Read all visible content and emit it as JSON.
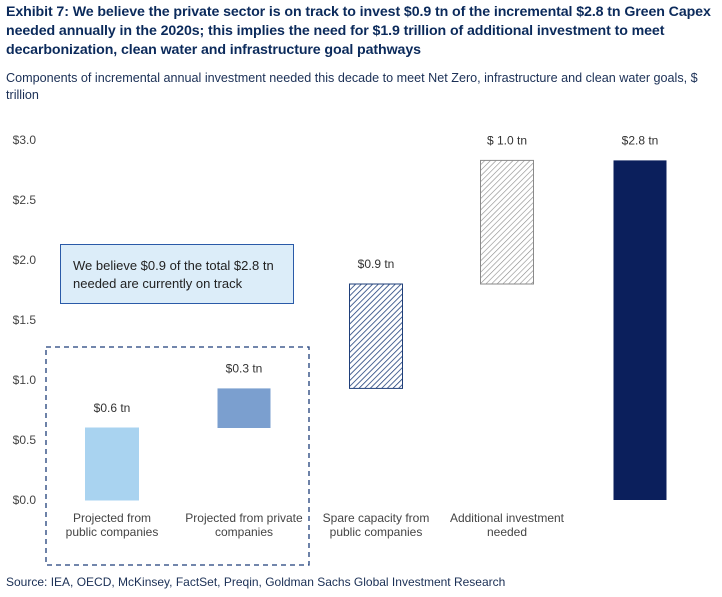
{
  "title": "Exhibit 7: We believe the private sector is on track to invest $0.9 tn of the incremental $2.8 tn Green Capex needed annually in the 2020s; this implies the need for $1.9 trillion of additional investment to meet decarbonization, clean water and infrastructure goal pathways",
  "subtitle": "Components of incremental annual investment needed this decade to meet Net Zero, infrastructure and clean water goals, $ trillion",
  "source": "Source: IEA, OECD, McKinsey, FactSet, Preqin, Goldman Sachs Global Investment Research",
  "callout": "We believe $0.9 of the total $2.8 tn needed are currently on track",
  "chart_data": {
    "type": "bar",
    "subtype": "waterfall",
    "categories": [
      [
        "Projected from",
        "public companies"
      ],
      [
        "Projected from private",
        "companies"
      ],
      [
        "Spare capacity from",
        "public companies"
      ],
      [
        "Additional investment",
        "needed"
      ],
      [
        ""
      ]
    ],
    "bars": [
      {
        "base": 0.0,
        "value": 0.6,
        "label": "$0.6 tn",
        "fill": "#a9d3f0",
        "pattern": "none"
      },
      {
        "base": 0.6,
        "value": 0.33,
        "label": "$0.3 tn",
        "fill": "#7b9fcf",
        "pattern": "none"
      },
      {
        "base": 0.93,
        "value": 0.87,
        "label": "$0.9 tn",
        "fill": "#ffffff",
        "pattern": "hatch-dense"
      },
      {
        "base": 1.8,
        "value": 1.03,
        "label": "$ 1.0 tn",
        "fill": "#ffffff",
        "pattern": "hatch-light"
      },
      {
        "base": 0.0,
        "value": 2.83,
        "label": "$2.8 tn",
        "fill": "#0b1f5c",
        "pattern": "none"
      }
    ],
    "ylim": [
      0,
      3.0
    ],
    "yticks": [
      0.0,
      0.5,
      1.0,
      1.5,
      2.0,
      2.5,
      3.0
    ],
    "ytick_labels": [
      "$0.0",
      "$0.5",
      "$1.0",
      "$1.5",
      "$2.0",
      "$2.5",
      "$3.0"
    ],
    "grid": false,
    "xlabel": "",
    "ylabel": ""
  }
}
